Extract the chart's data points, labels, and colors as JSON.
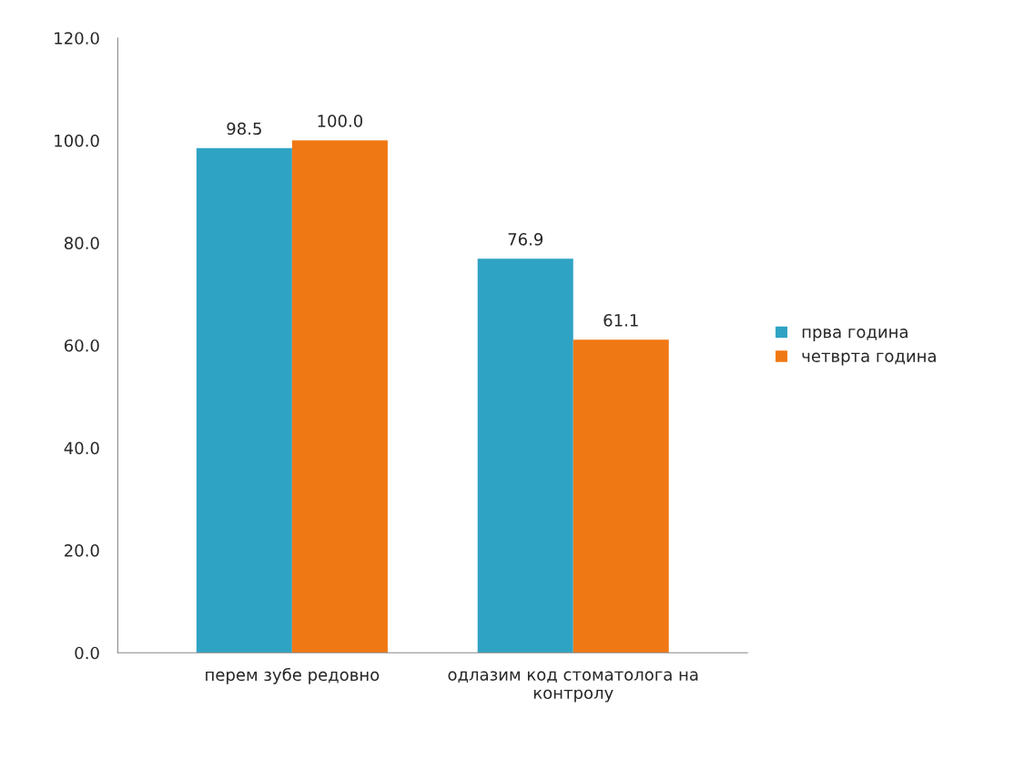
{
  "chart_data": {
    "type": "bar",
    "categories": [
      "перем зубе редовно",
      "одлазим код стоматолога на\nконтролу"
    ],
    "series": [
      {
        "name": "прва година",
        "color": "#2fa3c4",
        "values": [
          98.5,
          76.9
        ],
        "value_labels": [
          "98.5",
          "76.9"
        ]
      },
      {
        "name": "четврта година",
        "color": "#f07814",
        "values": [
          100.0,
          61.1
        ],
        "value_labels": [
          "100.0",
          "61.1"
        ]
      }
    ],
    "ylim": [
      0,
      120
    ],
    "yticks": [
      {
        "value": 0,
        "label": "0.0"
      },
      {
        "value": 20,
        "label": "20.0"
      },
      {
        "value": 40,
        "label": "40.0"
      },
      {
        "value": 60,
        "label": "60.0"
      },
      {
        "value": 80,
        "label": "80.0"
      },
      {
        "value": 100,
        "label": "100.0"
      },
      {
        "value": 120,
        "label": "120.0"
      }
    ],
    "grid": false,
    "legend": "right"
  }
}
